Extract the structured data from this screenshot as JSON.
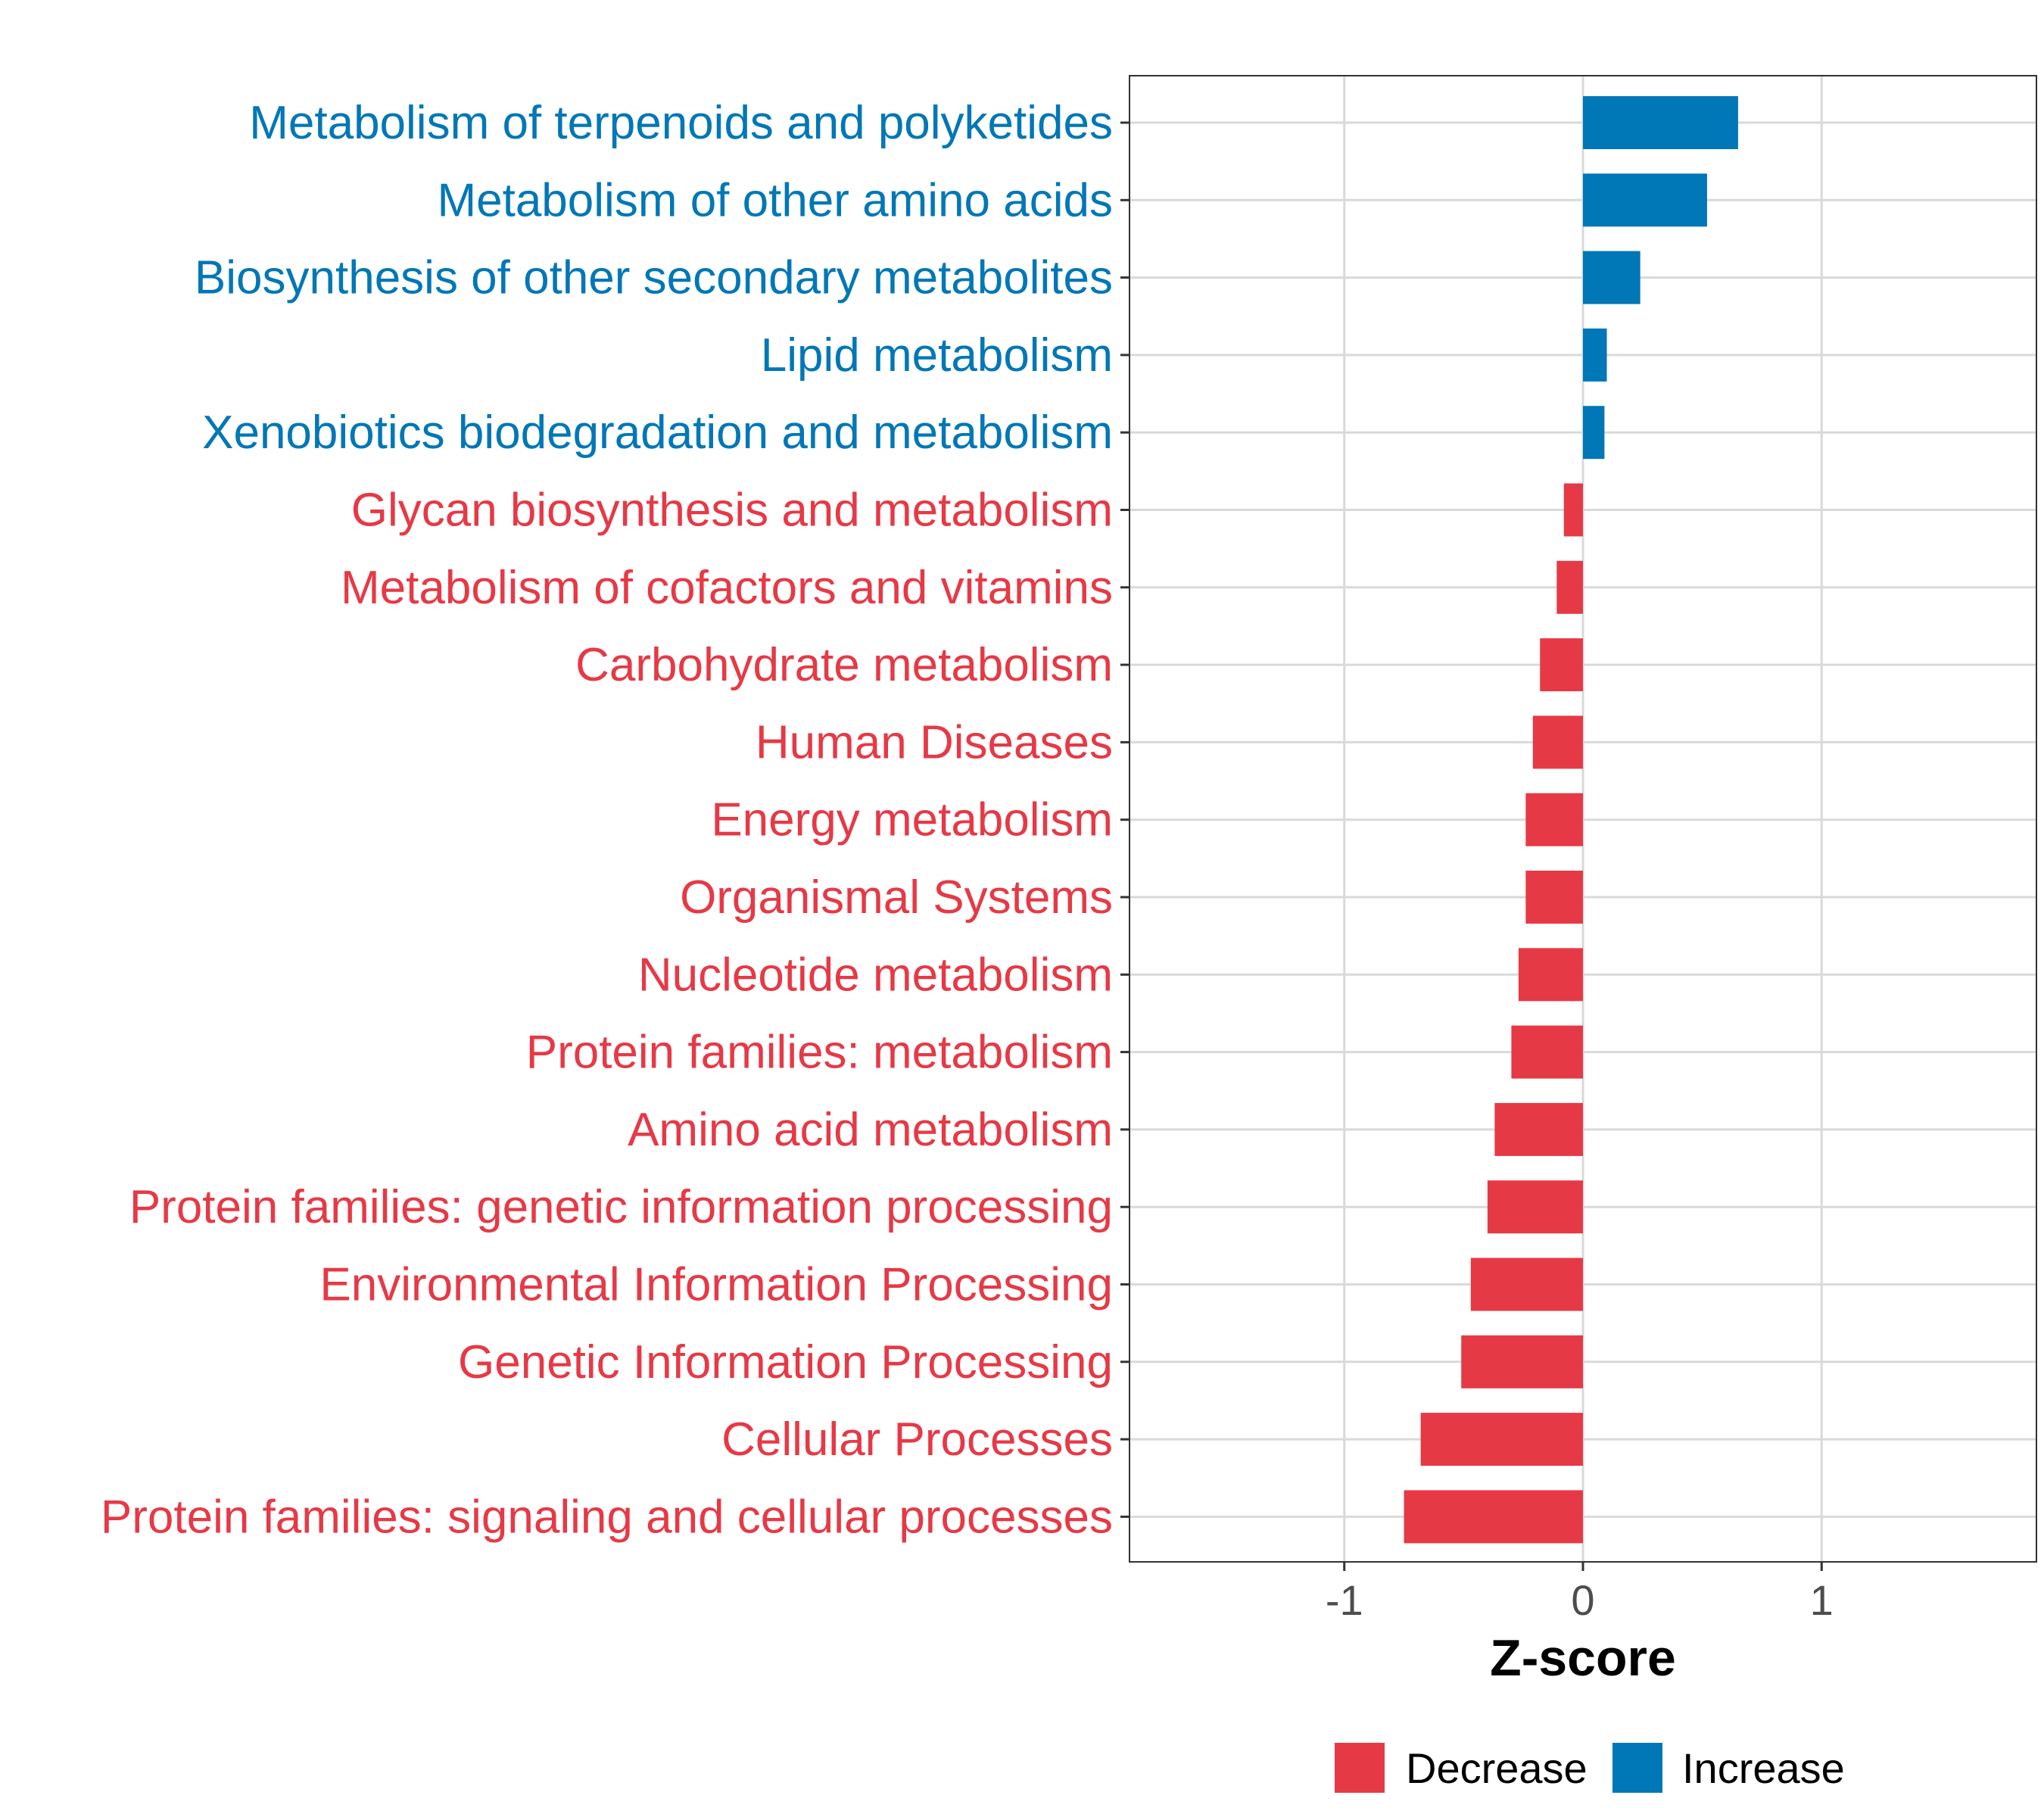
{
  "chart_data": {
    "type": "bar",
    "orientation": "horizontal",
    "xlabel": "Z-score",
    "ylabel": "",
    "xlim": [
      -1.9,
      1.9
    ],
    "xticks": [
      -1,
      0,
      1
    ],
    "xtick_labels": [
      "-1",
      "0",
      "1"
    ],
    "grid": true,
    "legend_position": "bottom",
    "legend": [
      {
        "name": "Decrease",
        "color": "#e63946"
      },
      {
        "name": "Increase",
        "color": "#0077b6"
      }
    ],
    "categories": [
      "Metabolism of terpenoids and polyketides",
      "Metabolism of other amino acids",
      "Biosynthesis of other secondary metabolites",
      "Lipid metabolism",
      "Xenobiotics biodegradation and metabolism",
      "Glycan biosynthesis and metabolism",
      "Metabolism of cofactors and vitamins",
      "Carbohydrate metabolism",
      "Human Diseases",
      "Energy metabolism",
      "Organismal Systems",
      "Nucleotide metabolism",
      "Protein families: metabolism",
      "Amino acid metabolism",
      "Protein families: genetic information processing",
      "Environmental Information Processing",
      "Genetic Information Processing",
      "Cellular Processes",
      "Protein families: signaling and cellular processes"
    ],
    "values": [
      0.65,
      0.52,
      0.24,
      0.1,
      0.09,
      -0.08,
      -0.11,
      -0.18,
      -0.21,
      -0.24,
      -0.24,
      -0.27,
      -0.3,
      -0.37,
      -0.4,
      -0.47,
      -0.51,
      -0.68,
      -0.75
    ],
    "groups": [
      "Increase",
      "Increase",
      "Increase",
      "Increase",
      "Increase",
      "Decrease",
      "Decrease",
      "Decrease",
      "Decrease",
      "Decrease",
      "Decrease",
      "Decrease",
      "Decrease",
      "Decrease",
      "Decrease",
      "Decrease",
      "Decrease",
      "Decrease",
      "Decrease"
    ]
  },
  "colors": {
    "increase": "#0077b6",
    "decrease": "#e63946",
    "grid": "#d9d9d9",
    "axis": "#333333"
  }
}
